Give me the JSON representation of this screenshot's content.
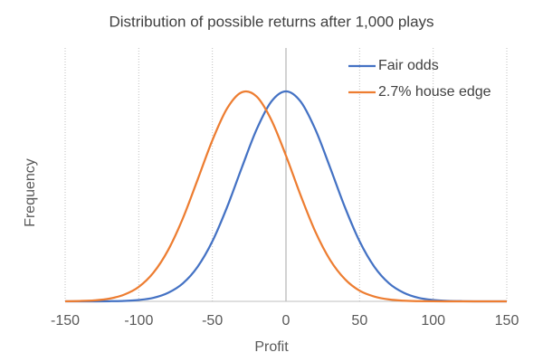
{
  "chart_data": {
    "type": "line",
    "title": "Distribution of possible returns after 1,000 plays",
    "x_label": "Profit",
    "y_label": "Frequency",
    "x": [
      -150,
      -140,
      -130,
      -120,
      -110,
      -100,
      -90,
      -80,
      -70,
      -60,
      -50,
      -40,
      -30,
      -20,
      -10,
      0,
      10,
      20,
      30,
      40,
      50,
      60,
      70,
      80,
      90,
      100,
      110,
      120,
      130,
      140,
      150
    ],
    "series": [
      {
        "name": "Fair odds",
        "color": "#4472c4",
        "values": [
          0,
          0.0001,
          0.0002,
          0.0007,
          0.0023,
          0.0067,
          0.017,
          0.041,
          0.086,
          0.165,
          0.286,
          0.449,
          0.637,
          0.818,
          0.951,
          1,
          0.951,
          0.818,
          0.637,
          0.449,
          0.286,
          0.165,
          0.086,
          0.041,
          0.017,
          0.0067,
          0.0023,
          0.0007,
          0.0002,
          0.0001,
          0
        ]
      },
      {
        "name": "2.7% house edge",
        "color": "#ed7d31",
        "values": [
          0.0005,
          0.0017,
          0.0049,
          0.0131,
          0.0318,
          0.069,
          0.137,
          0.245,
          0.396,
          0.58,
          0.767,
          0.919,
          0.996,
          0.976,
          0.865,
          0.694,
          0.504,
          0.331,
          0.197,
          0.106,
          0.051,
          0.023,
          0.009,
          0.0032,
          0.0011,
          0.0003,
          0.0001,
          0,
          0,
          0,
          0
        ]
      }
    ],
    "xlim": [
      -150,
      150
    ],
    "xticks": [
      -150,
      -100,
      -50,
      0,
      50,
      100,
      150
    ],
    "ylim": [
      0,
      1.25
    ],
    "grid": true,
    "legend": "top-right"
  }
}
